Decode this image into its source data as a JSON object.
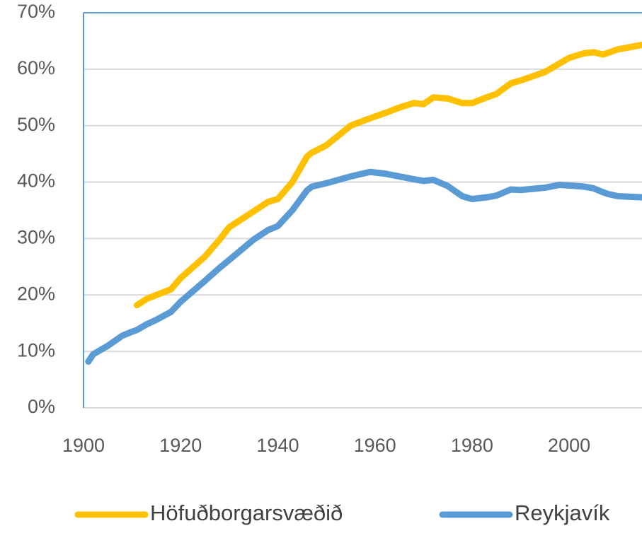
{
  "chart_data": {
    "type": "line",
    "x": [
      1901,
      1902,
      1905,
      1908,
      1910,
      1911,
      1913,
      1915,
      1918,
      1920,
      1925,
      1928,
      1930,
      1935,
      1938,
      1940,
      1943,
      1946,
      1947,
      1950,
      1955,
      1959,
      1960,
      1962,
      1965,
      1968,
      1970,
      1972,
      1975,
      1978,
      1980,
      1983,
      1985,
      1988,
      1990,
      1995,
      1998,
      2000,
      2003,
      2005,
      2007,
      2008,
      2010,
      2015
    ],
    "series": [
      {
        "name": "Höfuðborgarsvæðið",
        "color": "#ffc000",
        "values": [
          null,
          null,
          null,
          null,
          null,
          18.2,
          19.3,
          20,
          21,
          23,
          26.8,
          29.8,
          32,
          34.8,
          36.5,
          37,
          40,
          44.5,
          45.2,
          46.5,
          50,
          51.3,
          51.6,
          52.2,
          53.2,
          54,
          53.8,
          55,
          54.8,
          54,
          54,
          55,
          55.6,
          57.5,
          58,
          59.5,
          61,
          62,
          62.8,
          63,
          62.6,
          62.9,
          63.5,
          64.3
        ]
      },
      {
        "name": "Reykjavík",
        "color": "#5b9bd5",
        "values": [
          8.2,
          9.5,
          11,
          12.8,
          13.5,
          13.8,
          14.8,
          15.6,
          17,
          18.8,
          22.5,
          24.8,
          26.2,
          29.8,
          31.5,
          32.2,
          35,
          38.5,
          39.2,
          39.8,
          41,
          41.8,
          41.7,
          41.5,
          41,
          40.5,
          40.2,
          40.4,
          39.3,
          37.5,
          37,
          37.3,
          37.6,
          38.7,
          38.6,
          39,
          39.5,
          39.4,
          39.2,
          38.9,
          38.2,
          37.9,
          37.5,
          37.3
        ]
      }
    ],
    "xlim": [
      1900,
      2015
    ],
    "xticks": [
      1900,
      1920,
      1940,
      1960,
      1980,
      2000
    ],
    "ylim": [
      0,
      70
    ],
    "yticks": [
      {
        "value": 0,
        "label": "0%"
      },
      {
        "value": 10,
        "label": "10%"
      },
      {
        "value": 20,
        "label": "20%"
      },
      {
        "value": 30,
        "label": "30%"
      },
      {
        "value": 40,
        "label": "40%"
      },
      {
        "value": 50,
        "label": "50%"
      },
      {
        "value": 60,
        "label": "60%"
      },
      {
        "value": 70,
        "label": "70%"
      }
    ],
    "grid": true,
    "legend": "bottom"
  }
}
